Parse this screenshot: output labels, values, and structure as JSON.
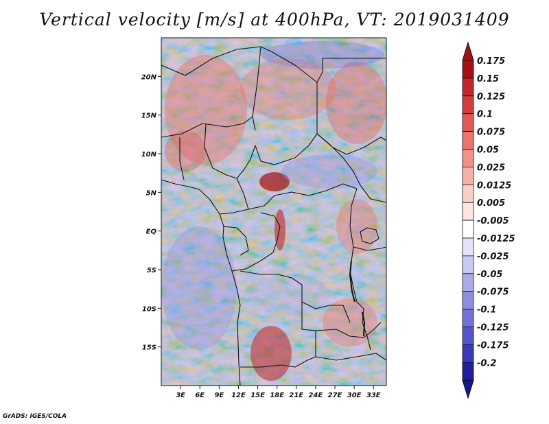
{
  "title": "Vertical velocity [m/s] at 400hPa, VT: 2019031409",
  "credit": "GrADS: IGES/COLA",
  "map": {
    "lat_range": [
      -20,
      25
    ],
    "lon_range": [
      0,
      35
    ],
    "lat_ticks": [
      {
        "value": 20,
        "label": "20N"
      },
      {
        "value": 15,
        "label": "15N"
      },
      {
        "value": 10,
        "label": "10N"
      },
      {
        "value": 5,
        "label": "5N"
      },
      {
        "value": 0,
        "label": "EQ"
      },
      {
        "value": -5,
        "label": "5S"
      },
      {
        "value": -10,
        "label": "10S"
      },
      {
        "value": -15,
        "label": "15S"
      }
    ],
    "lon_ticks": [
      {
        "value": 3,
        "label": "3E"
      },
      {
        "value": 6,
        "label": "6E"
      },
      {
        "value": 9,
        "label": "9E"
      },
      {
        "value": 12,
        "label": "12E"
      },
      {
        "value": 15,
        "label": "15E"
      },
      {
        "value": 18,
        "label": "18E"
      },
      {
        "value": 21,
        "label": "21E"
      },
      {
        "value": 24,
        "label": "24E"
      },
      {
        "value": 27,
        "label": "27E"
      },
      {
        "value": 30,
        "label": "30E"
      },
      {
        "value": 33,
        "label": "33E"
      }
    ]
  },
  "colorbar": {
    "units": "m/s",
    "levels": [
      {
        "label": "0.175",
        "color": "#a50f15"
      },
      {
        "label": "0.15",
        "color": "#c0262d"
      },
      {
        "label": "0.125",
        "color": "#d43d3d"
      },
      {
        "label": "0.1",
        "color": "#e05a55"
      },
      {
        "label": "0.075",
        "color": "#e8756e"
      },
      {
        "label": "0.05",
        "color": "#f09289"
      },
      {
        "label": "0.025",
        "color": "#f5b1a8"
      },
      {
        "label": "0.0125",
        "color": "#f9cfc8"
      },
      {
        "label": "0.005",
        "color": "#fce6e2"
      },
      {
        "label": "-0.005",
        "color": "#ffffff"
      },
      {
        "label": "-0.0125",
        "color": "#e4e4f8"
      },
      {
        "label": "-0.025",
        "color": "#c9c9f2"
      },
      {
        "label": "-0.05",
        "color": "#ababea"
      },
      {
        "label": "-0.075",
        "color": "#8f8fe2"
      },
      {
        "label": "-0.1",
        "color": "#7272d8"
      },
      {
        "label": "-0.125",
        "color": "#5555cc"
      },
      {
        "label": "-0.175",
        "color": "#3a3ab8"
      },
      {
        "label": "-0.2",
        "color": "#1f1fa0"
      }
    ],
    "top_cap_color": "#a50f15",
    "bottom_cap_color": "#17178c"
  }
}
